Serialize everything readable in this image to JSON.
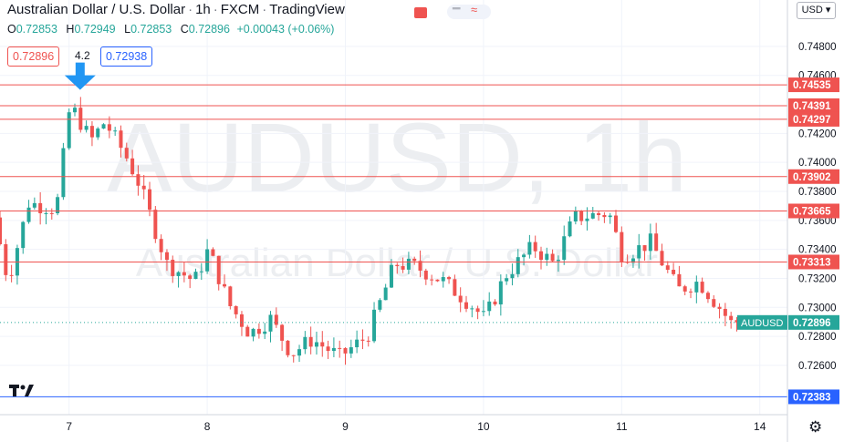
{
  "header": {
    "symbol": "Australian Dollar / U.S. Dollar",
    "interval": "1h",
    "exchange": "FXCM",
    "platform": "TradingView",
    "ohlc": {
      "open_label": "O",
      "open": "0.72853",
      "high_label": "H",
      "high": "0.72949",
      "low_label": "L",
      "low": "0.72853",
      "close_label": "C",
      "close": "0.72896",
      "change": "+0.00043 (+0.06%)"
    },
    "sell_price": "0.72896",
    "spread": "4.2",
    "buy_price": "0.72938",
    "currency_button": "USD ▾"
  },
  "colors": {
    "up": "#26a69a",
    "down": "#ef5350",
    "resistance": "#ef5350",
    "support": "#2962ff",
    "arrow": "#2196f3",
    "current_price": "#26a69a"
  },
  "icons": [
    "tradingview-logo-icon",
    "settings-gear-icon",
    "down-arrow-icon",
    "red-flag-icon"
  ],
  "chart_data": {
    "type": "candlestick",
    "watermark_large": "AUDUSD, 1h",
    "watermark_small": "Australian Dollar / U.S. Dollar",
    "ylim": [
      0.7226,
      0.7512
    ],
    "y_ticks": [
      "0.74800",
      "0.74600",
      "0.74200",
      "0.74000",
      "0.73800",
      "0.73600",
      "0.73400",
      "0.73200",
      "0.73000",
      "0.72800",
      "0.72600"
    ],
    "y_tick_values": [
      0.748,
      0.746,
      0.742,
      0.74,
      0.738,
      0.736,
      0.734,
      0.732,
      0.73,
      0.728,
      0.726
    ],
    "x_ticks": [
      "7",
      "8",
      "9",
      "10",
      "11",
      "14"
    ],
    "x_tick_positions": [
      7,
      8,
      9,
      10,
      11,
      12
    ],
    "x_range": [
      6.5,
      12.2
    ],
    "horizontal_levels": [
      {
        "value": 0.74535,
        "label": "0.74535",
        "kind": "resistance"
      },
      {
        "value": 0.74391,
        "label": "0.74391",
        "kind": "resistance"
      },
      {
        "value": 0.74297,
        "label": "0.74297",
        "kind": "resistance"
      },
      {
        "value": 0.73902,
        "label": "0.73902",
        "kind": "resistance"
      },
      {
        "value": 0.73665,
        "label": "0.73665",
        "kind": "resistance"
      },
      {
        "value": 0.73313,
        "label": "0.73313",
        "kind": "resistance"
      },
      {
        "value": 0.72383,
        "label": "0.72383",
        "kind": "support"
      }
    ],
    "current_price": {
      "value": 0.72896,
      "label": "0.72896",
      "symbol": "AUDUSD"
    },
    "arrow_at": {
      "x": 7.08,
      "y": 0.745
    },
    "key_prices": [
      [
        6.5,
        0.7362
      ],
      [
        6.6,
        0.7318
      ],
      [
        6.75,
        0.7372
      ],
      [
        6.95,
        0.7368
      ],
      [
        7.05,
        0.744
      ],
      [
        7.2,
        0.7415
      ],
      [
        7.3,
        0.7428
      ],
      [
        7.45,
        0.7405
      ],
      [
        7.55,
        0.7385
      ],
      [
        7.75,
        0.733
      ],
      [
        7.95,
        0.7318
      ],
      [
        8.05,
        0.734
      ],
      [
        8.2,
        0.7302
      ],
      [
        8.35,
        0.7282
      ],
      [
        8.5,
        0.7292
      ],
      [
        8.65,
        0.7268
      ],
      [
        8.8,
        0.7278
      ],
      [
        9.0,
        0.7266
      ],
      [
        9.2,
        0.728
      ],
      [
        9.4,
        0.733
      ],
      [
        9.55,
        0.7328
      ],
      [
        9.75,
        0.7318
      ],
      [
        9.95,
        0.7302
      ],
      [
        10.05,
        0.7292
      ],
      [
        10.2,
        0.7322
      ],
      [
        10.4,
        0.7342
      ],
      [
        10.55,
        0.733
      ],
      [
        10.7,
        0.7362
      ],
      [
        10.95,
        0.7365
      ],
      [
        11.05,
        0.7335
      ],
      [
        11.25,
        0.7345
      ],
      [
        11.45,
        0.7312
      ],
      [
        11.6,
        0.7318
      ],
      [
        11.75,
        0.73
      ],
      [
        11.85,
        0.7287
      ]
    ],
    "last_close": 0.72896
  }
}
